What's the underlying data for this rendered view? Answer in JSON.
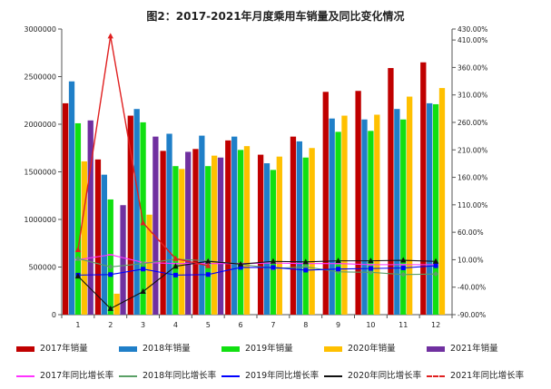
{
  "chart_data": {
    "type": "bar+line",
    "title": "图2：2017-2021年月度乘用车销量及同比变化情况",
    "categories": [
      "1",
      "2",
      "3",
      "4",
      "5",
      "6",
      "7",
      "8",
      "9",
      "10",
      "11",
      "12"
    ],
    "y_left": {
      "min": 0,
      "max": 3000000,
      "ticks": [
        0,
        500000,
        1000000,
        1500000,
        2000000,
        2500000,
        3000000
      ],
      "tick_labels": [
        "0",
        "500000",
        "1000000",
        "1500000",
        "2000000",
        "2500000",
        "3000000"
      ]
    },
    "y_right": {
      "min": -90,
      "max": 430,
      "ticks": [
        -90,
        -40,
        10,
        60,
        110,
        160,
        210,
        260,
        310,
        360,
        410,
        430
      ],
      "tick_labels": [
        "-90.00%",
        "-40.00%",
        "10.00%",
        "60.00%",
        "110.00%",
        "160.00%",
        "210.00%",
        "260.00%",
        "310.00%",
        "360.00%",
        "410.00%",
        "430.00%"
      ]
    },
    "grid": false,
    "bar_series": [
      {
        "name": "2017年销量",
        "color": "#c00000",
        "values": [
          2220000,
          1630000,
          2090000,
          1720000,
          1740000,
          1830000,
          1680000,
          1870000,
          2340000,
          2350000,
          2590000,
          2650000
        ]
      },
      {
        "name": "2018年销量",
        "color": "#1f7fc8",
        "values": [
          2450000,
          1470000,
          2160000,
          1900000,
          1880000,
          1870000,
          1590000,
          1820000,
          2060000,
          2050000,
          2160000,
          2220000
        ]
      },
      {
        "name": "2019年销量",
        "color": "#11e011",
        "values": [
          2010000,
          1210000,
          2020000,
          1560000,
          1560000,
          1730000,
          1520000,
          1650000,
          1920000,
          1930000,
          2050000,
          2210000
        ]
      },
      {
        "name": "2020年销量",
        "color": "#ffc000",
        "values": [
          1610000,
          220000,
          1050000,
          1530000,
          1670000,
          1770000,
          1660000,
          1750000,
          2090000,
          2100000,
          2290000,
          2380000
        ]
      },
      {
        "name": "2021年销量",
        "color": "#7030a0",
        "values": [
          2040000,
          1150000,
          1870000,
          1710000,
          1650000,
          null,
          null,
          null,
          null,
          null,
          null,
          null
        ]
      }
    ],
    "line_series": [
      {
        "name": "2017年同比增长率",
        "color": "#ff33ff",
        "marker": "dash",
        "values": [
          10,
          19,
          5,
          3,
          3,
          3,
          4,
          3,
          3,
          1,
          1,
          1
        ]
      },
      {
        "name": "2018年同比增长率",
        "color": "#5aa066",
        "marker": "diamond",
        "values": [
          12,
          -3,
          3,
          11,
          8,
          2,
          -6,
          -3,
          -12,
          -13,
          -17,
          -16
        ]
      },
      {
        "name": "2019年同比增长率",
        "color": "#0000ff",
        "marker": "square",
        "values": [
          -18,
          -17,
          -7,
          -18,
          -17,
          -4,
          -4,
          -9,
          -7,
          -6,
          -5,
          -1
        ]
      },
      {
        "name": "2020年同比增长率",
        "color": "#111111",
        "marker": "triangle",
        "values": [
          -20,
          -79,
          -48,
          -2,
          7,
          2,
          7,
          6,
          8,
          8,
          9,
          7
        ]
      },
      {
        "name": "2021年同比增长率",
        "color": "#e02020",
        "marker": "triangle-red",
        "dashed": true,
        "values": [
          28,
          417,
          77,
          12,
          -1,
          null,
          null,
          null,
          null,
          null,
          null,
          null
        ]
      }
    ]
  }
}
